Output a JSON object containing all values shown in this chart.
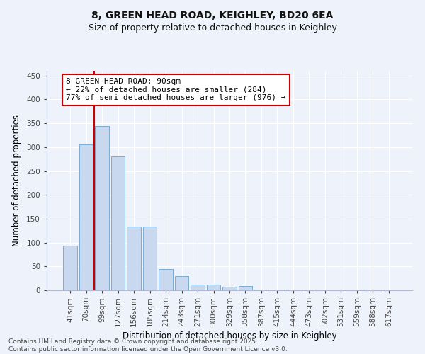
{
  "title": "8, GREEN HEAD ROAD, KEIGHLEY, BD20 6EA",
  "subtitle": "Size of property relative to detached houses in Keighley",
  "xlabel": "Distribution of detached houses by size in Keighley",
  "ylabel": "Number of detached properties",
  "categories": [
    "41sqm",
    "70sqm",
    "99sqm",
    "127sqm",
    "156sqm",
    "185sqm",
    "214sqm",
    "243sqm",
    "271sqm",
    "300sqm",
    "329sqm",
    "358sqm",
    "387sqm",
    "415sqm",
    "444sqm",
    "473sqm",
    "502sqm",
    "531sqm",
    "559sqm",
    "588sqm",
    "617sqm"
  ],
  "values": [
    93,
    305,
    345,
    280,
    133,
    133,
    45,
    30,
    12,
    12,
    7,
    9,
    2,
    2,
    1,
    1,
    0,
    0,
    0,
    2,
    1
  ],
  "bar_color": "#c8d8ee",
  "bar_edge_color": "#7aadd4",
  "vline_x": 1.5,
  "vline_color": "#cc0000",
  "annotation_text_line1": "8 GREEN HEAD ROAD: 90sqm",
  "annotation_text_line2": "← 22% of detached houses are smaller (284)",
  "annotation_text_line3": "77% of semi-detached houses are larger (976) →",
  "box_edge_color": "#cc0000",
  "ylim": [
    0,
    460
  ],
  "yticks": [
    0,
    50,
    100,
    150,
    200,
    250,
    300,
    350,
    400,
    450
  ],
  "footer_line1": "Contains HM Land Registry data © Crown copyright and database right 2025.",
  "footer_line2": "Contains public sector information licensed under the Open Government Licence v3.0.",
  "background_color": "#eef2fa",
  "title_fontsize": 10,
  "subtitle_fontsize": 9,
  "axis_label_fontsize": 8.5,
  "tick_fontsize": 7.5,
  "annotation_fontsize": 8,
  "footer_fontsize": 6.5
}
